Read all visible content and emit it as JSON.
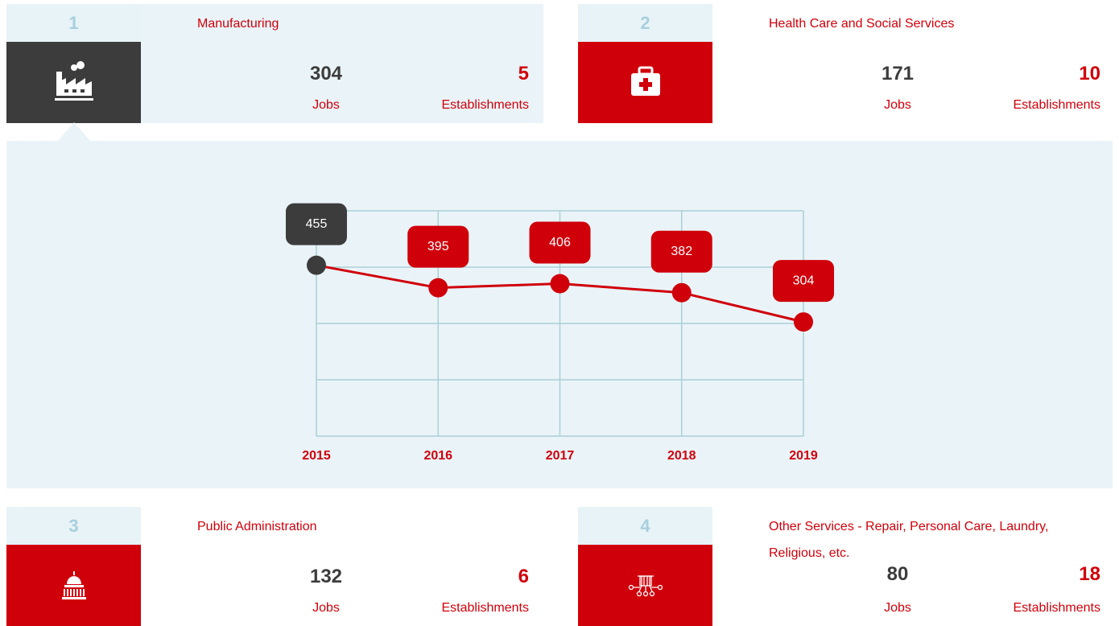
{
  "cards": [
    {
      "rank": "1",
      "title": "Manufacturing",
      "jobs": "304",
      "jobs_label": "Jobs",
      "establishments": "5",
      "establishments_label": "Establishments",
      "selected": true,
      "icon": "factory"
    },
    {
      "rank": "2",
      "title": "Health Care and Social Services",
      "jobs": "171",
      "jobs_label": "Jobs",
      "establishments": "10",
      "establishments_label": "Establishments",
      "selected": false,
      "icon": "medical"
    },
    {
      "rank": "3",
      "title": "Public Administration",
      "jobs": "132",
      "jobs_label": "Jobs",
      "establishments": "6",
      "establishments_label": "Establishments",
      "selected": false,
      "icon": "capitol"
    },
    {
      "rank": "4",
      "title": "Other Services - Repair, Personal Care, Laundry, Religious, etc.",
      "jobs": "80",
      "jobs_label": "Jobs",
      "establishments": "18",
      "establishments_label": "Establishments",
      "selected": false,
      "icon": "network"
    }
  ],
  "chart_data": {
    "type": "line",
    "categories": [
      "2015",
      "2016",
      "2017",
      "2018",
      "2019"
    ],
    "values": [
      455,
      395,
      406,
      382,
      304
    ],
    "color": "#d0000b",
    "point_colors": [
      "#3c3c3c",
      "#d0000b",
      "#d0000b",
      "#d0000b",
      "#d0000b"
    ],
    "ylim": [
      0,
      600
    ],
    "yticks": [
      0,
      150,
      300,
      450,
      600
    ],
    "grid": true
  }
}
